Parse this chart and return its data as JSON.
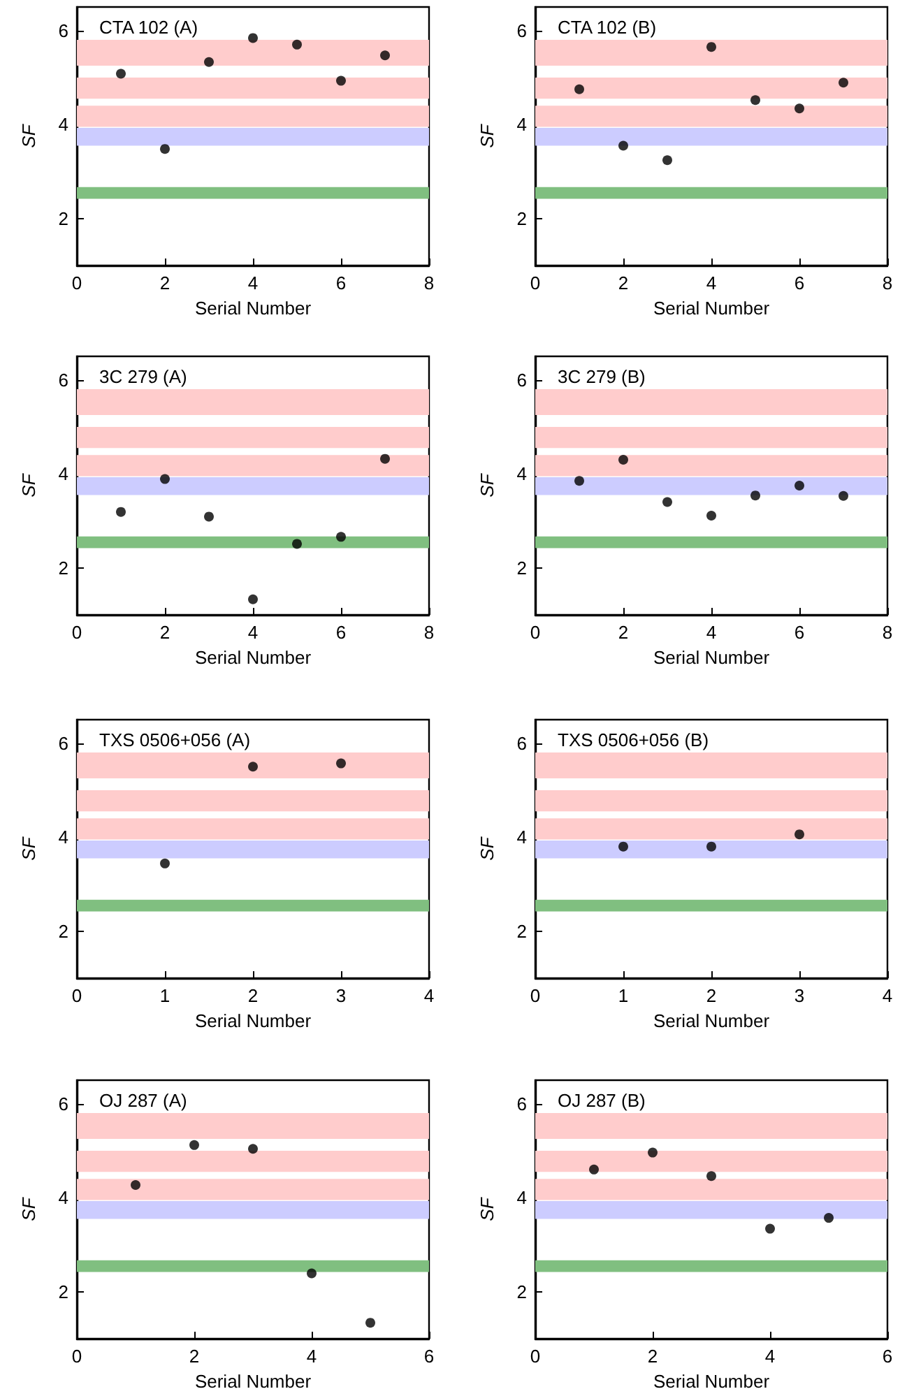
{
  "chart_data": [
    {
      "type": "scatter",
      "title": "CTA 102 (A)",
      "xlabel": "Serial Number",
      "ylabel": "SF",
      "x": [
        1,
        2,
        3,
        4,
        5,
        6,
        7
      ],
      "values": [
        5.08,
        3.48,
        5.33,
        5.84,
        5.7,
        4.93,
        5.47
      ],
      "color": "#000000",
      "marker": "circle",
      "xlim": [
        0,
        8
      ],
      "xticks": [
        0,
        2,
        4,
        6,
        8
      ],
      "ylim": [
        1,
        6.5
      ],
      "yticks": [
        2,
        4,
        6
      ],
      "grid": false,
      "bands": [
        {
          "axis": "y",
          "from": 5.25,
          "to": 5.8,
          "color": "#ffcccc"
        },
        {
          "axis": "y",
          "from": 4.55,
          "to": 5.0,
          "color": "#ffcccc"
        },
        {
          "axis": "y",
          "from": 3.95,
          "to": 4.4,
          "color": "#ffcccc"
        },
        {
          "axis": "y",
          "from": 3.55,
          "to": 3.93,
          "color": "#ccccff"
        },
        {
          "axis": "y",
          "from": 2.42,
          "to": 2.67,
          "color": "#80bf80"
        }
      ]
    },
    {
      "type": "scatter",
      "title": "CTA 102 (B)",
      "xlabel": "Serial Number",
      "ylabel": "SF",
      "x": [
        1,
        2,
        3,
        4,
        5,
        6,
        7
      ],
      "values": [
        4.75,
        3.55,
        3.24,
        5.65,
        4.52,
        4.34,
        4.89
      ],
      "color": "#000000",
      "marker": "circle",
      "xlim": [
        0,
        8
      ],
      "xticks": [
        0,
        2,
        4,
        6,
        8
      ],
      "ylim": [
        1,
        6.5
      ],
      "yticks": [
        2,
        4,
        6
      ],
      "grid": false,
      "bands": [
        {
          "axis": "y",
          "from": 5.25,
          "to": 5.8,
          "color": "#ffcccc"
        },
        {
          "axis": "y",
          "from": 4.55,
          "to": 5.0,
          "color": "#ffcccc"
        },
        {
          "axis": "y",
          "from": 3.95,
          "to": 4.4,
          "color": "#ffcccc"
        },
        {
          "axis": "y",
          "from": 3.55,
          "to": 3.93,
          "color": "#ccccff"
        },
        {
          "axis": "y",
          "from": 2.42,
          "to": 2.67,
          "color": "#80bf80"
        }
      ]
    },
    {
      "type": "scatter",
      "title": "3C 279 (A)",
      "xlabel": "Serial Number",
      "ylabel": "SF",
      "x": [
        1,
        2,
        3,
        4,
        5,
        6,
        7
      ],
      "values": [
        3.19,
        3.89,
        3.09,
        1.33,
        2.51,
        2.66,
        4.32
      ],
      "color": "#000000",
      "marker": "circle",
      "xlim": [
        0,
        8
      ],
      "xticks": [
        0,
        2,
        4,
        6,
        8
      ],
      "ylim": [
        1,
        6.5
      ],
      "yticks": [
        2,
        4,
        6
      ],
      "grid": false,
      "bands": [
        {
          "axis": "y",
          "from": 5.25,
          "to": 5.8,
          "color": "#ffcccc"
        },
        {
          "axis": "y",
          "from": 4.55,
          "to": 5.0,
          "color": "#ffcccc"
        },
        {
          "axis": "y",
          "from": 3.95,
          "to": 4.4,
          "color": "#ffcccc"
        },
        {
          "axis": "y",
          "from": 3.55,
          "to": 3.93,
          "color": "#ccccff"
        },
        {
          "axis": "y",
          "from": 2.42,
          "to": 2.67,
          "color": "#80bf80"
        }
      ]
    },
    {
      "type": "scatter",
      "title": "3C 279 (B)",
      "xlabel": "Serial Number",
      "ylabel": "SF",
      "x": [
        1,
        2,
        3,
        4,
        5,
        6,
        7
      ],
      "values": [
        3.85,
        4.3,
        3.4,
        3.11,
        3.54,
        3.75,
        3.53
      ],
      "color": "#000000",
      "marker": "circle",
      "xlim": [
        0,
        8
      ],
      "xticks": [
        0,
        2,
        4,
        6,
        8
      ],
      "ylim": [
        1,
        6.5
      ],
      "yticks": [
        2,
        4,
        6
      ],
      "grid": false,
      "bands": [
        {
          "axis": "y",
          "from": 5.25,
          "to": 5.8,
          "color": "#ffcccc"
        },
        {
          "axis": "y",
          "from": 4.55,
          "to": 5.0,
          "color": "#ffcccc"
        },
        {
          "axis": "y",
          "from": 3.95,
          "to": 4.4,
          "color": "#ffcccc"
        },
        {
          "axis": "y",
          "from": 3.55,
          "to": 3.93,
          "color": "#ccccff"
        },
        {
          "axis": "y",
          "from": 2.42,
          "to": 2.67,
          "color": "#80bf80"
        }
      ]
    },
    {
      "type": "scatter",
      "title": "TXS 0506+056 (A)",
      "xlabel": "Serial Number",
      "ylabel": "SF",
      "x": [
        1,
        2,
        3
      ],
      "values": [
        3.44,
        5.5,
        5.57
      ],
      "color": "#000000",
      "marker": "circle",
      "xlim": [
        0,
        4
      ],
      "xticks": [
        0,
        1,
        2,
        3,
        4
      ],
      "ylim": [
        1,
        6.5
      ],
      "yticks": [
        2,
        4,
        6
      ],
      "grid": false,
      "bands": [
        {
          "axis": "y",
          "from": 5.25,
          "to": 5.8,
          "color": "#ffcccc"
        },
        {
          "axis": "y",
          "from": 4.55,
          "to": 5.0,
          "color": "#ffcccc"
        },
        {
          "axis": "y",
          "from": 3.95,
          "to": 4.4,
          "color": "#ffcccc"
        },
        {
          "axis": "y",
          "from": 3.55,
          "to": 3.93,
          "color": "#ccccff"
        },
        {
          "axis": "y",
          "from": 2.42,
          "to": 2.67,
          "color": "#80bf80"
        }
      ]
    },
    {
      "type": "scatter",
      "title": "TXS 0506+056 (B)",
      "xlabel": "Serial Number",
      "ylabel": "SF",
      "x": [
        1,
        2,
        3
      ],
      "values": [
        3.8,
        3.8,
        4.06
      ],
      "color": "#000000",
      "marker": "circle",
      "xlim": [
        0,
        4
      ],
      "xticks": [
        0,
        1,
        2,
        3,
        4
      ],
      "ylim": [
        1,
        6.5
      ],
      "yticks": [
        2,
        4,
        6
      ],
      "grid": false,
      "bands": [
        {
          "axis": "y",
          "from": 5.25,
          "to": 5.8,
          "color": "#ffcccc"
        },
        {
          "axis": "y",
          "from": 4.55,
          "to": 5.0,
          "color": "#ffcccc"
        },
        {
          "axis": "y",
          "from": 3.95,
          "to": 4.4,
          "color": "#ffcccc"
        },
        {
          "axis": "y",
          "from": 3.55,
          "to": 3.93,
          "color": "#ccccff"
        },
        {
          "axis": "y",
          "from": 2.42,
          "to": 2.67,
          "color": "#80bf80"
        }
      ]
    },
    {
      "type": "scatter",
      "title": "OJ 287 (A)",
      "xlabel": "Serial Number",
      "ylabel": "SF",
      "x": [
        1,
        2,
        3,
        4,
        5
      ],
      "values": [
        4.27,
        5.12,
        5.04,
        2.39,
        1.34
      ],
      "color": "#000000",
      "marker": "circle",
      "xlim": [
        0,
        6
      ],
      "xticks": [
        0,
        2,
        4,
        6
      ],
      "ylim": [
        1,
        6.5
      ],
      "yticks": [
        2,
        4,
        6
      ],
      "grid": false,
      "bands": [
        {
          "axis": "y",
          "from": 5.25,
          "to": 5.8,
          "color": "#ffcccc"
        },
        {
          "axis": "y",
          "from": 4.55,
          "to": 5.0,
          "color": "#ffcccc"
        },
        {
          "axis": "y",
          "from": 3.95,
          "to": 4.4,
          "color": "#ffcccc"
        },
        {
          "axis": "y",
          "from": 3.55,
          "to": 3.93,
          "color": "#ccccff"
        },
        {
          "axis": "y",
          "from": 2.42,
          "to": 2.67,
          "color": "#80bf80"
        }
      ]
    },
    {
      "type": "scatter",
      "title": "OJ 287 (B)",
      "xlabel": "Serial Number",
      "ylabel": "SF",
      "x": [
        1,
        2,
        3,
        4,
        5
      ],
      "values": [
        4.6,
        4.96,
        4.46,
        3.34,
        3.57
      ],
      "color": "#000000",
      "marker": "circle",
      "xlim": [
        0,
        6
      ],
      "xticks": [
        0,
        2,
        4,
        6
      ],
      "ylim": [
        1,
        6.5
      ],
      "yticks": [
        2,
        4,
        6
      ],
      "grid": false,
      "bands": [
        {
          "axis": "y",
          "from": 5.25,
          "to": 5.8,
          "color": "#ffcccc"
        },
        {
          "axis": "y",
          "from": 4.55,
          "to": 5.0,
          "color": "#ffcccc"
        },
        {
          "axis": "y",
          "from": 3.95,
          "to": 4.4,
          "color": "#ffcccc"
        },
        {
          "axis": "y",
          "from": 3.55,
          "to": 3.93,
          "color": "#ccccff"
        },
        {
          "axis": "y",
          "from": 2.42,
          "to": 2.67,
          "color": "#80bf80"
        }
      ]
    }
  ]
}
